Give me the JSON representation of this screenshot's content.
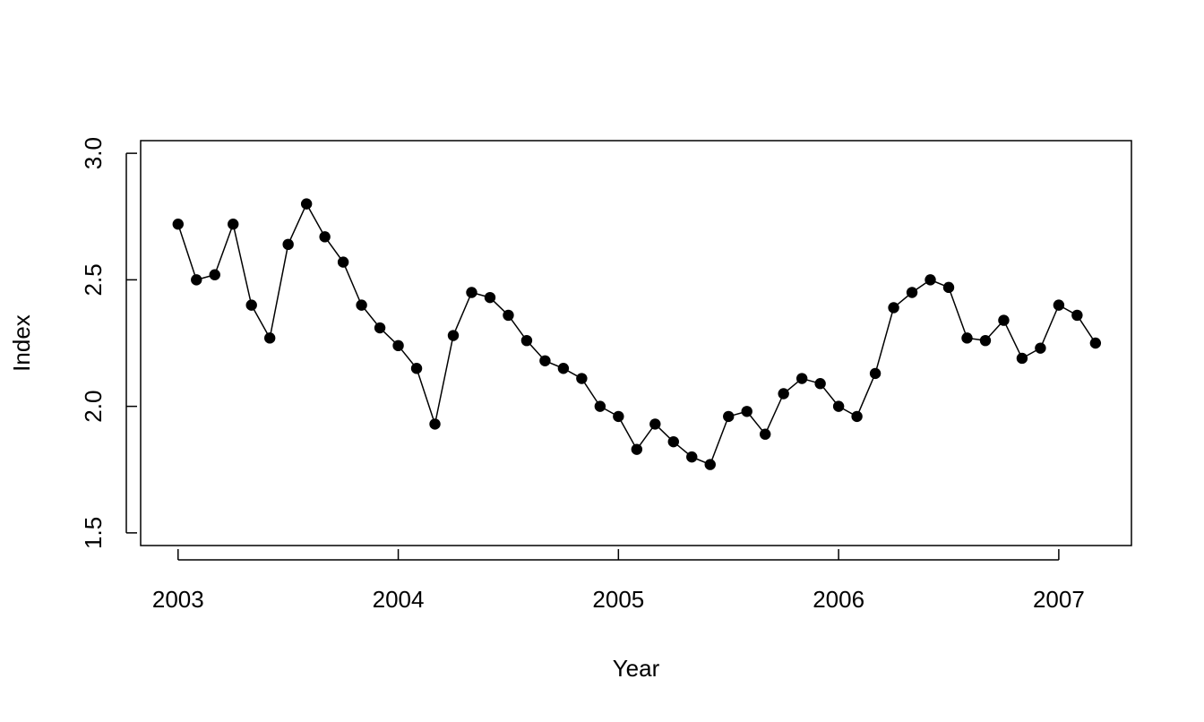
{
  "chart_data": {
    "type": "line",
    "title": "",
    "xlabel": "Year",
    "ylabel": "Index",
    "xlim": [
      2002.83,
      2007.33
    ],
    "ylim": [
      1.45,
      3.05
    ],
    "x_ticks": [
      {
        "value": 2003,
        "label": "2003"
      },
      {
        "value": 2004,
        "label": "2004"
      },
      {
        "value": 2005,
        "label": "2005"
      },
      {
        "value": 2006,
        "label": "2006"
      },
      {
        "value": 2007,
        "label": "2007"
      }
    ],
    "y_ticks": [
      {
        "value": 1.5,
        "label": "1.5"
      },
      {
        "value": 2.0,
        "label": "2.0"
      },
      {
        "value": 2.5,
        "label": "2.5"
      },
      {
        "value": 3.0,
        "label": "3.0"
      }
    ],
    "grid": false,
    "legend": "none",
    "marker": "filled-circle",
    "colors": {
      "line": "#000000",
      "points": "#000000",
      "axes": "#000000"
    },
    "series": [
      {
        "x": [
          "2003-01",
          "2003-02",
          "2003-03",
          "2003-04",
          "2003-05",
          "2003-06",
          "2003-07",
          "2003-08",
          "2003-09",
          "2003-10",
          "2003-11",
          "2003-12",
          "2004-01",
          "2004-02",
          "2004-03",
          "2004-04",
          "2004-05",
          "2004-06",
          "2004-07",
          "2004-08",
          "2004-09",
          "2004-10",
          "2004-11",
          "2004-12",
          "2005-01",
          "2005-02",
          "2005-03",
          "2005-04",
          "2005-05",
          "2005-06",
          "2005-07",
          "2005-08",
          "2005-09",
          "2005-10",
          "2005-11",
          "2005-12",
          "2006-01",
          "2006-02",
          "2006-03",
          "2006-04",
          "2006-05",
          "2006-06",
          "2006-07",
          "2006-08",
          "2006-09",
          "2006-10",
          "2006-11",
          "2006-12",
          "2007-01",
          "2007-02",
          "2007-03"
        ],
        "values": [
          2.72,
          2.5,
          2.52,
          2.72,
          2.4,
          2.27,
          2.64,
          2.8,
          2.67,
          2.57,
          2.4,
          2.31,
          2.24,
          2.15,
          1.93,
          2.28,
          2.45,
          2.43,
          2.36,
          2.26,
          2.18,
          2.15,
          2.11,
          2.0,
          1.96,
          1.83,
          1.93,
          1.86,
          1.8,
          1.77,
          1.96,
          1.98,
          1.89,
          2.05,
          2.11,
          2.09,
          2.0,
          1.96,
          2.13,
          2.39,
          2.45,
          2.5,
          2.47,
          2.27,
          2.26,
          2.34,
          2.19,
          2.23,
          2.4,
          2.36,
          2.25
        ]
      }
    ]
  }
}
